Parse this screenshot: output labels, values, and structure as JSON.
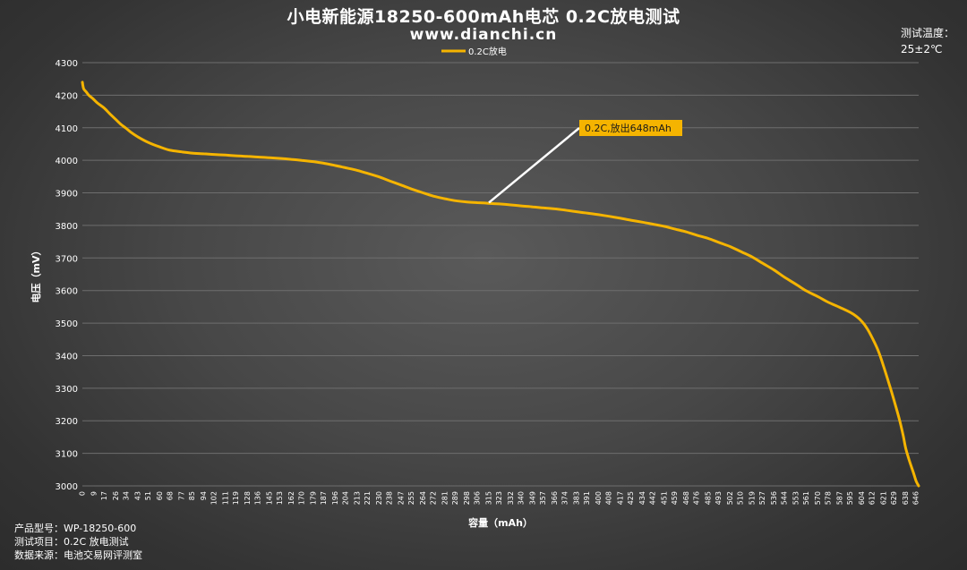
{
  "header": {
    "title": "小电新能源18250-600mAh电芯 0.2C放电测试",
    "subtitle": "www.dianchi.cn"
  },
  "temperature": {
    "label": "测试温度：",
    "value": "25±2℃"
  },
  "footer": {
    "model": "产品型号：WP-18250-600",
    "item": "测试项目：0.2C 放电测试",
    "source": "数据来源：电池交易网评测室"
  },
  "colors": {
    "line": "#f5b400",
    "grid": "#6e6e6e",
    "annotation_bg": "#f5b400",
    "leader": "#ffffff"
  },
  "chart_data": {
    "type": "line",
    "title": "小电新能源18250-600mAh电芯 0.2C放电测试",
    "xlabel": "容量（mAh）",
    "ylabel": "电压（mV）",
    "ylim": [
      3000,
      4300
    ],
    "yticks": [
      3000,
      3100,
      3200,
      3300,
      3400,
      3500,
      3600,
      3700,
      3800,
      3900,
      4000,
      4100,
      4200,
      4300
    ],
    "xlim": [
      0,
      648
    ],
    "xticks": [
      0,
      9,
      17,
      26,
      34,
      43,
      51,
      60,
      68,
      77,
      85,
      94,
      102,
      111,
      119,
      128,
      136,
      145,
      153,
      162,
      170,
      179,
      187,
      196,
      204,
      213,
      221,
      230,
      238,
      247,
      255,
      264,
      272,
      281,
      289,
      298,
      306,
      315,
      323,
      332,
      340,
      349,
      357,
      366,
      374,
      383,
      391,
      400,
      408,
      417,
      425,
      434,
      442,
      451,
      459,
      468,
      476,
      485,
      493,
      502,
      510,
      519,
      527,
      536,
      544,
      553,
      561,
      570,
      578,
      587,
      595,
      604,
      612,
      621,
      629,
      638,
      646
    ],
    "grid": true,
    "legend_position": "top",
    "series": [
      {
        "name": "0.2C放电",
        "x": [
          0,
          1,
          3,
          5,
          8,
          12,
          17,
          22,
          26,
          30,
          34,
          38,
          43,
          51,
          60,
          68,
          77,
          85,
          94,
          102,
          111,
          119,
          128,
          136,
          145,
          153,
          162,
          170,
          179,
          187,
          196,
          204,
          213,
          221,
          230,
          238,
          247,
          255,
          264,
          272,
          281,
          289,
          298,
          306,
          315,
          323,
          332,
          340,
          349,
          357,
          366,
          374,
          383,
          391,
          400,
          408,
          417,
          425,
          434,
          442,
          451,
          459,
          468,
          476,
          485,
          493,
          502,
          510,
          519,
          527,
          536,
          544,
          553,
          561,
          570,
          578,
          587,
          595,
          600,
          604,
          608,
          612,
          617,
          621,
          625,
          629,
          633,
          636,
          638,
          641,
          644,
          646,
          648
        ],
        "y": [
          4240,
          4220,
          4210,
          4200,
          4190,
          4175,
          4160,
          4140,
          4125,
          4110,
          4098,
          4085,
          4072,
          4055,
          4041,
          4031,
          4026,
          4022,
          4020,
          4018,
          4016,
          4014,
          4012,
          4010,
          4008,
          4006,
          4003,
          4000,
          3996,
          3991,
          3984,
          3977,
          3969,
          3960,
          3949,
          3937,
          3924,
          3912,
          3900,
          3890,
          3882,
          3876,
          3872,
          3870,
          3868,
          3866,
          3863,
          3860,
          3857,
          3854,
          3851,
          3847,
          3842,
          3838,
          3833,
          3828,
          3822,
          3816,
          3810,
          3804,
          3797,
          3789,
          3780,
          3770,
          3760,
          3748,
          3735,
          3720,
          3703,
          3684,
          3663,
          3641,
          3619,
          3599,
          3581,
          3564,
          3548,
          3533,
          3520,
          3505,
          3484,
          3455,
          3412,
          3365,
          3315,
          3262,
          3205,
          3155,
          3115,
          3075,
          3040,
          3015,
          3000
        ]
      }
    ],
    "annotation": {
      "text": "0.2C,放出648mAh",
      "anchor_x": 315,
      "anchor_y": 3870
    }
  }
}
